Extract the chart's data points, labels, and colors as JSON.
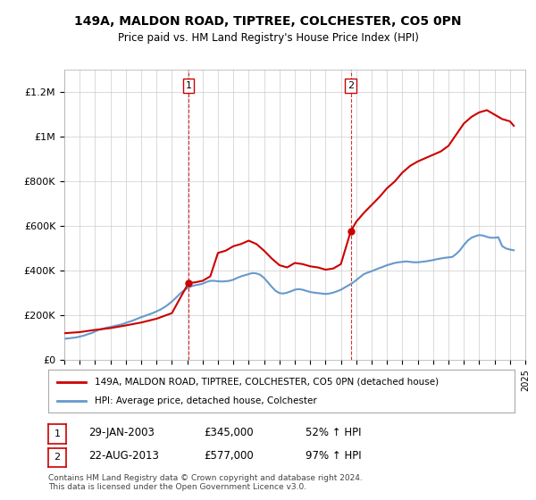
{
  "title": "149A, MALDON ROAD, TIPTREE, COLCHESTER, CO5 0PN",
  "subtitle": "Price paid vs. HM Land Registry's House Price Index (HPI)",
  "footer": "Contains HM Land Registry data © Crown copyright and database right 2024.\nThis data is licensed under the Open Government Licence v3.0.",
  "legend_line1": "149A, MALDON ROAD, TIPTREE, COLCHESTER, CO5 0PN (detached house)",
  "legend_line2": "HPI: Average price, detached house, Colchester",
  "annotation1": {
    "num": "1",
    "date": "29-JAN-2003",
    "price": "£345,000",
    "pct": "52% ↑ HPI"
  },
  "annotation2": {
    "num": "2",
    "date": "22-AUG-2013",
    "price": "£577,000",
    "pct": "97% ↑ HPI"
  },
  "hpi_color": "#6699cc",
  "sale_color": "#cc0000",
  "vline_color": "#cc0000",
  "background_color": "#ffffff",
  "grid_color": "#cccccc",
  "ylim": [
    0,
    1300000
  ],
  "yticks": [
    0,
    200000,
    400000,
    600000,
    800000,
    1000000,
    1200000
  ],
  "ytick_labels": [
    "£0",
    "£200K",
    "£400K",
    "£600K",
    "£800K",
    "£1M",
    "£1.2M"
  ],
  "sale1_x": 2003.08,
  "sale1_y": 345000,
  "sale2_x": 2013.64,
  "sale2_y": 577000,
  "hpi_x": [
    1995,
    1995.25,
    1995.5,
    1995.75,
    1996,
    1996.25,
    1996.5,
    1996.75,
    1997,
    1997.25,
    1997.5,
    1997.75,
    1998,
    1998.25,
    1998.5,
    1998.75,
    1999,
    1999.25,
    1999.5,
    1999.75,
    2000,
    2000.25,
    2000.5,
    2000.75,
    2001,
    2001.25,
    2001.5,
    2001.75,
    2002,
    2002.25,
    2002.5,
    2002.75,
    2003,
    2003.25,
    2003.5,
    2003.75,
    2004,
    2004.25,
    2004.5,
    2004.75,
    2005,
    2005.25,
    2005.5,
    2005.75,
    2006,
    2006.25,
    2006.5,
    2006.75,
    2007,
    2007.25,
    2007.5,
    2007.75,
    2008,
    2008.25,
    2008.5,
    2008.75,
    2009,
    2009.25,
    2009.5,
    2009.75,
    2010,
    2010.25,
    2010.5,
    2010.75,
    2011,
    2011.25,
    2011.5,
    2011.75,
    2012,
    2012.25,
    2012.5,
    2012.75,
    2013,
    2013.25,
    2013.5,
    2013.75,
    2014,
    2014.25,
    2014.5,
    2014.75,
    2015,
    2015.25,
    2015.5,
    2015.75,
    2016,
    2016.25,
    2016.5,
    2016.75,
    2017,
    2017.25,
    2017.5,
    2017.75,
    2018,
    2018.25,
    2018.5,
    2018.75,
    2019,
    2019.25,
    2019.5,
    2019.75,
    2020,
    2020.25,
    2020.5,
    2020.75,
    2021,
    2021.25,
    2021.5,
    2021.75,
    2022,
    2022.25,
    2022.5,
    2022.75,
    2023,
    2023.25,
    2023.5,
    2023.75,
    2024,
    2024.25
  ],
  "hpi_y": [
    95000,
    97000,
    99000,
    101000,
    105000,
    109000,
    115000,
    120000,
    128000,
    135000,
    140000,
    145000,
    148000,
    152000,
    156000,
    160000,
    166000,
    172000,
    178000,
    185000,
    192000,
    198000,
    204000,
    210000,
    218000,
    226000,
    236000,
    248000,
    262000,
    278000,
    295000,
    310000,
    322000,
    330000,
    335000,
    338000,
    342000,
    350000,
    355000,
    355000,
    353000,
    352000,
    353000,
    355000,
    360000,
    368000,
    375000,
    380000,
    385000,
    390000,
    388000,
    382000,
    368000,
    348000,
    328000,
    310000,
    300000,
    298000,
    302000,
    308000,
    315000,
    318000,
    315000,
    310000,
    305000,
    302000,
    300000,
    298000,
    296000,
    298000,
    302000,
    308000,
    315000,
    325000,
    335000,
    345000,
    358000,
    372000,
    385000,
    392000,
    398000,
    405000,
    412000,
    418000,
    425000,
    430000,
    435000,
    438000,
    440000,
    442000,
    440000,
    438000,
    438000,
    440000,
    442000,
    445000,
    448000,
    452000,
    455000,
    458000,
    460000,
    462000,
    475000,
    492000,
    515000,
    535000,
    548000,
    555000,
    560000,
    558000,
    552000,
    548000,
    548000,
    550000,
    510000,
    500000,
    495000,
    492000
  ],
  "sale_x_line1": 2003.08,
  "sale_x_line2": 2013.64,
  "xmin": 1995,
  "xmax": 2025
}
